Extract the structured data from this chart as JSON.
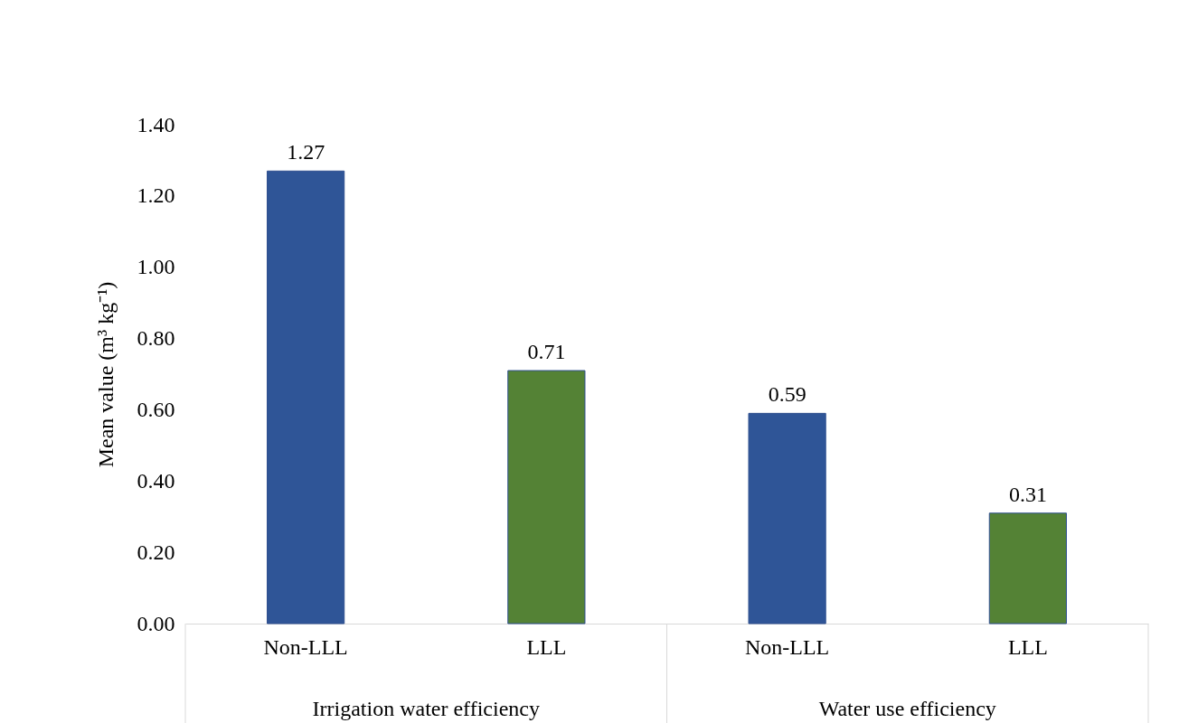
{
  "chart_data": {
    "type": "bar",
    "categories": [
      "Non-LLL",
      "LLL",
      "Non-LLL",
      "LLL"
    ],
    "values": [
      1.27,
      0.71,
      0.59,
      0.31
    ],
    "colors": [
      "#2f5597",
      "#548235",
      "#2f5597",
      "#548235"
    ],
    "ylabel": "Mean value (m³ kg⁻¹)",
    "ylim": [
      0,
      1.4
    ],
    "yticks": [
      {
        "value": 0,
        "label": "0.00"
      },
      {
        "value": 0.2,
        "label": "0.20"
      },
      {
        "value": 0.4,
        "label": "0.40"
      },
      {
        "value": 0.6,
        "label": "0.60"
      },
      {
        "value": 0.8,
        "label": "0.80"
      },
      {
        "value": 1,
        "label": "1.00"
      },
      {
        "value": 1.2,
        "label": "1.20"
      },
      {
        "value": 1.4,
        "label": "1.40"
      }
    ],
    "data_labels": true,
    "grid": false,
    "annotations": [
      "Irrigation water efficiency",
      "Water use efficiency"
    ]
  }
}
